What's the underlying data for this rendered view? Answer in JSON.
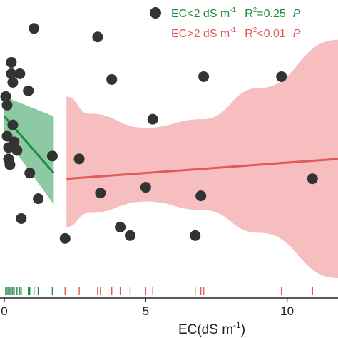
{
  "chart_data": {
    "type": "scatter",
    "xlabel_main": "EC(dS m",
    "xlabel_sup": "-1",
    "xlabel_close": ")",
    "xlim": [
      0,
      11.8
    ],
    "ylim": [
      0,
      1
    ],
    "x_ticks": [
      {
        "value": 0,
        "label": "0"
      },
      {
        "value": 5,
        "label": "5"
      },
      {
        "value": 10,
        "label": "10"
      }
    ],
    "points_color": "#333333",
    "points": [
      {
        "x": 0.05,
        "y": 0.66
      },
      {
        "x": 0.1,
        "y": 0.63
      },
      {
        "x": 0.1,
        "y": 0.52
      },
      {
        "x": 0.15,
        "y": 0.48
      },
      {
        "x": 0.15,
        "y": 0.44
      },
      {
        "x": 0.2,
        "y": 0.42
      },
      {
        "x": 0.25,
        "y": 0.74
      },
      {
        "x": 0.25,
        "y": 0.78
      },
      {
        "x": 0.3,
        "y": 0.71
      },
      {
        "x": 0.3,
        "y": 0.56
      },
      {
        "x": 0.35,
        "y": 0.5
      },
      {
        "x": 0.45,
        "y": 0.47
      },
      {
        "x": 0.55,
        "y": 0.74
      },
      {
        "x": 0.6,
        "y": 0.23
      },
      {
        "x": 0.85,
        "y": 0.68
      },
      {
        "x": 0.9,
        "y": 0.39
      },
      {
        "x": 1.05,
        "y": 0.9
      },
      {
        "x": 1.2,
        "y": 0.3
      },
      {
        "x": 1.7,
        "y": 0.45
      },
      {
        "x": 2.15,
        "y": 0.16
      },
      {
        "x": 2.65,
        "y": 0.44
      },
      {
        "x": 3.3,
        "y": 0.87
      },
      {
        "x": 3.4,
        "y": 0.32
      },
      {
        "x": 3.8,
        "y": 0.72
      },
      {
        "x": 4.1,
        "y": 0.2
      },
      {
        "x": 4.45,
        "y": 0.17
      },
      {
        "x": 5.0,
        "y": 0.34
      },
      {
        "x": 5.25,
        "y": 0.58
      },
      {
        "x": 6.75,
        "y": 0.17
      },
      {
        "x": 6.95,
        "y": 0.31
      },
      {
        "x": 7.05,
        "y": 0.73
      },
      {
        "x": 9.8,
        "y": 0.73
      },
      {
        "x": 10.9,
        "y": 0.37
      }
    ],
    "series": [
      {
        "name": "EC<2 dS m-1",
        "color": "#1e8a43",
        "band_color": "#67b784",
        "x_range": [
          0,
          1.75
        ],
        "line": [
          0.59,
          0.39
        ],
        "band_upper": [
          0.66,
          0.59
        ],
        "band_lower": [
          0.52,
          0.28
        ]
      },
      {
        "name": "EC>2 dS m-1",
        "color": "#e05a5a",
        "band_color": "#f4b3b3",
        "x_range": [
          2.2,
          11.8
        ],
        "line": [
          0.37,
          0.44
        ],
        "band_upper_pts": [
          [
            2.2,
            0.66
          ],
          [
            3.0,
            0.6
          ],
          [
            5.0,
            0.55
          ],
          [
            7.0,
            0.58
          ],
          [
            9.0,
            0.69
          ],
          [
            11.8,
            0.86
          ]
        ],
        "band_lower_pts": [
          [
            2.2,
            0.2
          ],
          [
            3.0,
            0.25
          ],
          [
            5.0,
            0.29
          ],
          [
            7.0,
            0.26
          ],
          [
            9.0,
            0.18
          ],
          [
            11.8,
            0.02
          ]
        ]
      }
    ],
    "rug_green_color": "#1e8a43",
    "rug_red_color": "#e05a5a",
    "rug_green": [
      0.05,
      0.1,
      0.15,
      0.2,
      0.25,
      0.3,
      0.35,
      0.45,
      0.55,
      0.6,
      0.85,
      0.9,
      1.05,
      1.2,
      1.7
    ],
    "rug_red": [
      2.15,
      2.65,
      3.3,
      3.4,
      3.8,
      4.1,
      4.45,
      5.0,
      5.25,
      6.75,
      6.95,
      7.05,
      9.8,
      10.9
    ]
  },
  "legend": {
    "marker_color": "#333333",
    "green": {
      "color": "#1e8a43",
      "text_main": "EC<2 dS m",
      "text_sup": "-1",
      "r2_prefix": "R",
      "r2_sup": "2",
      "r2_value": "=0.25",
      "trail": "P"
    },
    "red": {
      "color": "#e05a5a",
      "text_main": "EC>2 dS m",
      "text_sup": "-1",
      "r2_prefix": "R",
      "r2_sup": "2",
      "r2_value": "<0.01",
      "trail": "P"
    }
  }
}
